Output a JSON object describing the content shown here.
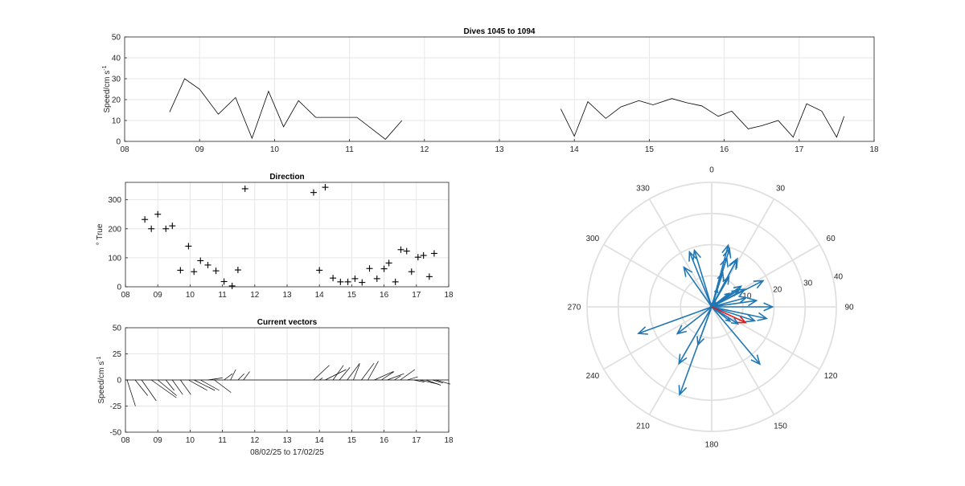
{
  "chart_data": [
    {
      "id": "speed",
      "type": "line",
      "title": "Dives 1045 to 1094",
      "ylabel": "Speed/cm s",
      "ylabel_sup": "-1",
      "xlim": [
        8,
        18
      ],
      "ylim": [
        0,
        50
      ],
      "xticks": [
        "08",
        "09",
        "10",
        "11",
        "12",
        "13",
        "14",
        "15",
        "16",
        "17",
        "18"
      ],
      "yticks": [
        "0",
        "10",
        "20",
        "30",
        "40",
        "50"
      ],
      "grid": true,
      "segments": [
        {
          "x": [
            8.6,
            8.8,
            9.0,
            9.25,
            9.48,
            9.7,
            9.92,
            10.12,
            10.32,
            10.55,
            11.1,
            11.48,
            11.7
          ],
          "y": [
            14,
            30,
            25,
            13,
            21,
            1.5,
            24,
            7,
            19.5,
            11.5,
            11.5,
            1,
            10
          ]
        },
        {
          "x": [
            13.82,
            14.0,
            14.18,
            14.42,
            14.62,
            14.86,
            15.05,
            15.3,
            15.5,
            15.7,
            15.92,
            16.1,
            16.32,
            16.5,
            16.72,
            16.92,
            17.1,
            17.3,
            17.5,
            17.6
          ],
          "y": [
            15.5,
            2.5,
            19,
            11,
            16.5,
            19.5,
            17.5,
            20.5,
            18.5,
            17,
            12,
            14.5,
            6,
            7.5,
            10,
            2,
            18,
            14.5,
            2,
            12
          ]
        }
      ]
    },
    {
      "id": "direction",
      "type": "scatter",
      "title": "Direction",
      "ylabel": "° True",
      "xlim": [
        8,
        18
      ],
      "ylim": [
        0,
        360
      ],
      "xticks": [
        "08",
        "09",
        "10",
        "11",
        "12",
        "13",
        "14",
        "15",
        "16",
        "17",
        "18"
      ],
      "yticks": [
        "0",
        "100",
        "200",
        "300"
      ],
      "grid": true,
      "marker": "+",
      "x": [
        8.6,
        8.8,
        9.0,
        9.25,
        9.45,
        9.7,
        9.95,
        10.12,
        10.32,
        10.55,
        10.8,
        11.05,
        11.3,
        11.48,
        11.7,
        13.82,
        14.0,
        14.18,
        14.42,
        14.65,
        14.88,
        15.1,
        15.32,
        15.55,
        15.78,
        16.0,
        16.15,
        16.35,
        16.52,
        16.7,
        16.85,
        17.05,
        17.22,
        17.4,
        17.55
      ],
      "y": [
        232,
        200,
        250,
        200,
        210,
        57,
        140,
        52,
        90,
        75,
        55,
        18,
        3,
        58,
        338,
        325,
        57,
        343,
        30,
        17,
        17,
        28,
        15,
        63,
        28,
        62,
        82,
        17,
        128,
        123,
        52,
        102,
        108,
        35,
        115
      ]
    },
    {
      "id": "vectors",
      "type": "vector",
      "title": "Current vectors",
      "ylabel": "Speed/cm s",
      "ylabel_sup": "-1",
      "xlabel": "08/02/25 to 17/02/25",
      "xlim": [
        8,
        18
      ],
      "ylim": [
        -50,
        50
      ],
      "xticks": [
        "08",
        "09",
        "10",
        "11",
        "12",
        "13",
        "14",
        "15",
        "16",
        "17",
        "18"
      ],
      "yticks": [
        "-50",
        "-25",
        "0",
        "25",
        "50"
      ],
      "grid": true,
      "vectors": [
        {
          "x": 8.05,
          "u": 8,
          "v": -25
        },
        {
          "x": 8.3,
          "u": 12,
          "v": -15
        },
        {
          "x": 8.5,
          "u": 14,
          "v": -20
        },
        {
          "x": 8.8,
          "u": 24,
          "v": -17
        },
        {
          "x": 9.0,
          "u": 18,
          "v": -15
        },
        {
          "x": 9.25,
          "u": 8,
          "v": -10
        },
        {
          "x": 9.45,
          "u": 10,
          "v": -14
        },
        {
          "x": 9.7,
          "u": 10,
          "v": -14
        },
        {
          "x": 9.95,
          "u": 18,
          "v": -10
        },
        {
          "x": 10.12,
          "u": 20,
          "v": -10
        },
        {
          "x": 10.32,
          "u": 18,
          "v": -10
        },
        {
          "x": 10.55,
          "u": 14,
          "v": 2
        },
        {
          "x": 10.75,
          "u": 16,
          "v": -12
        },
        {
          "x": 11.05,
          "u": 8,
          "v": 6
        },
        {
          "x": 11.25,
          "u": 5,
          "v": 10
        },
        {
          "x": 11.48,
          "u": 6,
          "v": 6
        },
        {
          "x": 11.65,
          "u": 6,
          "v": 8
        },
        {
          "x": 13.82,
          "u": 15,
          "v": 14
        },
        {
          "x": 14.0,
          "u": 3,
          "v": 2
        },
        {
          "x": 14.18,
          "u": 20,
          "v": 10
        },
        {
          "x": 14.42,
          "u": 10,
          "v": 14
        },
        {
          "x": 14.62,
          "u": 10,
          "v": 12
        },
        {
          "x": 14.86,
          "u": 12,
          "v": 16
        },
        {
          "x": 15.05,
          "u": 6,
          "v": 15
        },
        {
          "x": 15.3,
          "u": 12,
          "v": 16
        },
        {
          "x": 15.5,
          "u": 10,
          "v": 18
        },
        {
          "x": 15.7,
          "u": 18,
          "v": 8
        },
        {
          "x": 15.92,
          "u": 12,
          "v": 8
        },
        {
          "x": 16.1,
          "u": 16,
          "v": 6
        },
        {
          "x": 16.32,
          "u": 6,
          "v": 4
        },
        {
          "x": 16.5,
          "u": 14,
          "v": 10
        },
        {
          "x": 16.72,
          "u": 10,
          "v": 3
        },
        {
          "x": 16.92,
          "u": 10,
          "v": -2
        },
        {
          "x": 17.1,
          "u": 18,
          "v": -4
        },
        {
          "x": 17.3,
          "u": 14,
          "v": -5
        },
        {
          "x": 17.5,
          "u": 10,
          "v": -3
        },
        {
          "x": 17.6,
          "u": 14,
          "v": -4
        }
      ]
    },
    {
      "id": "compass",
      "type": "polar",
      "theta_zero": "top",
      "theta_direction": "clockwise",
      "theta_labels": [
        {
          "deg": 0,
          "label": "0"
        },
        {
          "deg": 30,
          "label": "30"
        },
        {
          "deg": 60,
          "label": "60"
        },
        {
          "deg": 90,
          "label": "90"
        },
        {
          "deg": 120,
          "label": "120"
        },
        {
          "deg": 150,
          "label": "150"
        },
        {
          "deg": 180,
          "label": "180"
        },
        {
          "deg": 210,
          "label": "210"
        },
        {
          "deg": 240,
          "label": "240"
        },
        {
          "deg": 270,
          "label": "270"
        },
        {
          "deg": 300,
          "label": "300"
        },
        {
          "deg": 330,
          "label": "330"
        }
      ],
      "rlim": [
        0,
        40
      ],
      "rticks": [
        "10",
        "20",
        "30",
        "40"
      ],
      "arrow_color": "#1f77b4",
      "highlight_color": "#e31a1c",
      "arrows": [
        {
          "dir": 232,
          "speed": 14
        },
        {
          "dir": 200,
          "speed": 30
        },
        {
          "dir": 250,
          "speed": 25
        },
        {
          "dir": 200,
          "speed": 13
        },
        {
          "dir": 210,
          "speed": 21
        },
        {
          "dir": 57,
          "speed": 1.5
        },
        {
          "dir": 140,
          "speed": 24
        },
        {
          "dir": 52,
          "speed": 7
        },
        {
          "dir": 90,
          "speed": 19.5
        },
        {
          "dir": 75,
          "speed": 11.5
        },
        {
          "dir": 55,
          "speed": 11.5
        },
        {
          "dir": 18,
          "speed": 11.5
        },
        {
          "dir": 3,
          "speed": 1
        },
        {
          "dir": 58,
          "speed": 10
        },
        {
          "dir": 338,
          "speed": 19
        },
        {
          "dir": 325,
          "speed": 15.5
        },
        {
          "dir": 57,
          "speed": 2.5
        },
        {
          "dir": 343,
          "speed": 19
        },
        {
          "dir": 30,
          "speed": 11
        },
        {
          "dir": 17,
          "speed": 16.5
        },
        {
          "dir": 17,
          "speed": 19.5
        },
        {
          "dir": 28,
          "speed": 17.5
        },
        {
          "dir": 15,
          "speed": 20.5
        },
        {
          "dir": 63,
          "speed": 18.5
        },
        {
          "dir": 28,
          "speed": 17
        },
        {
          "dir": 62,
          "speed": 12
        },
        {
          "dir": 82,
          "speed": 14.5
        },
        {
          "dir": 17,
          "speed": 6
        },
        {
          "dir": 128,
          "speed": 7.5
        },
        {
          "dir": 123,
          "speed": 10
        },
        {
          "dir": 52,
          "speed": 2
        },
        {
          "dir": 102,
          "speed": 18
        },
        {
          "dir": 108,
          "speed": 14.5
        },
        {
          "dir": 35,
          "speed": 2
        },
        {
          "dir": 115,
          "speed": 12,
          "highlight": true
        }
      ]
    }
  ]
}
